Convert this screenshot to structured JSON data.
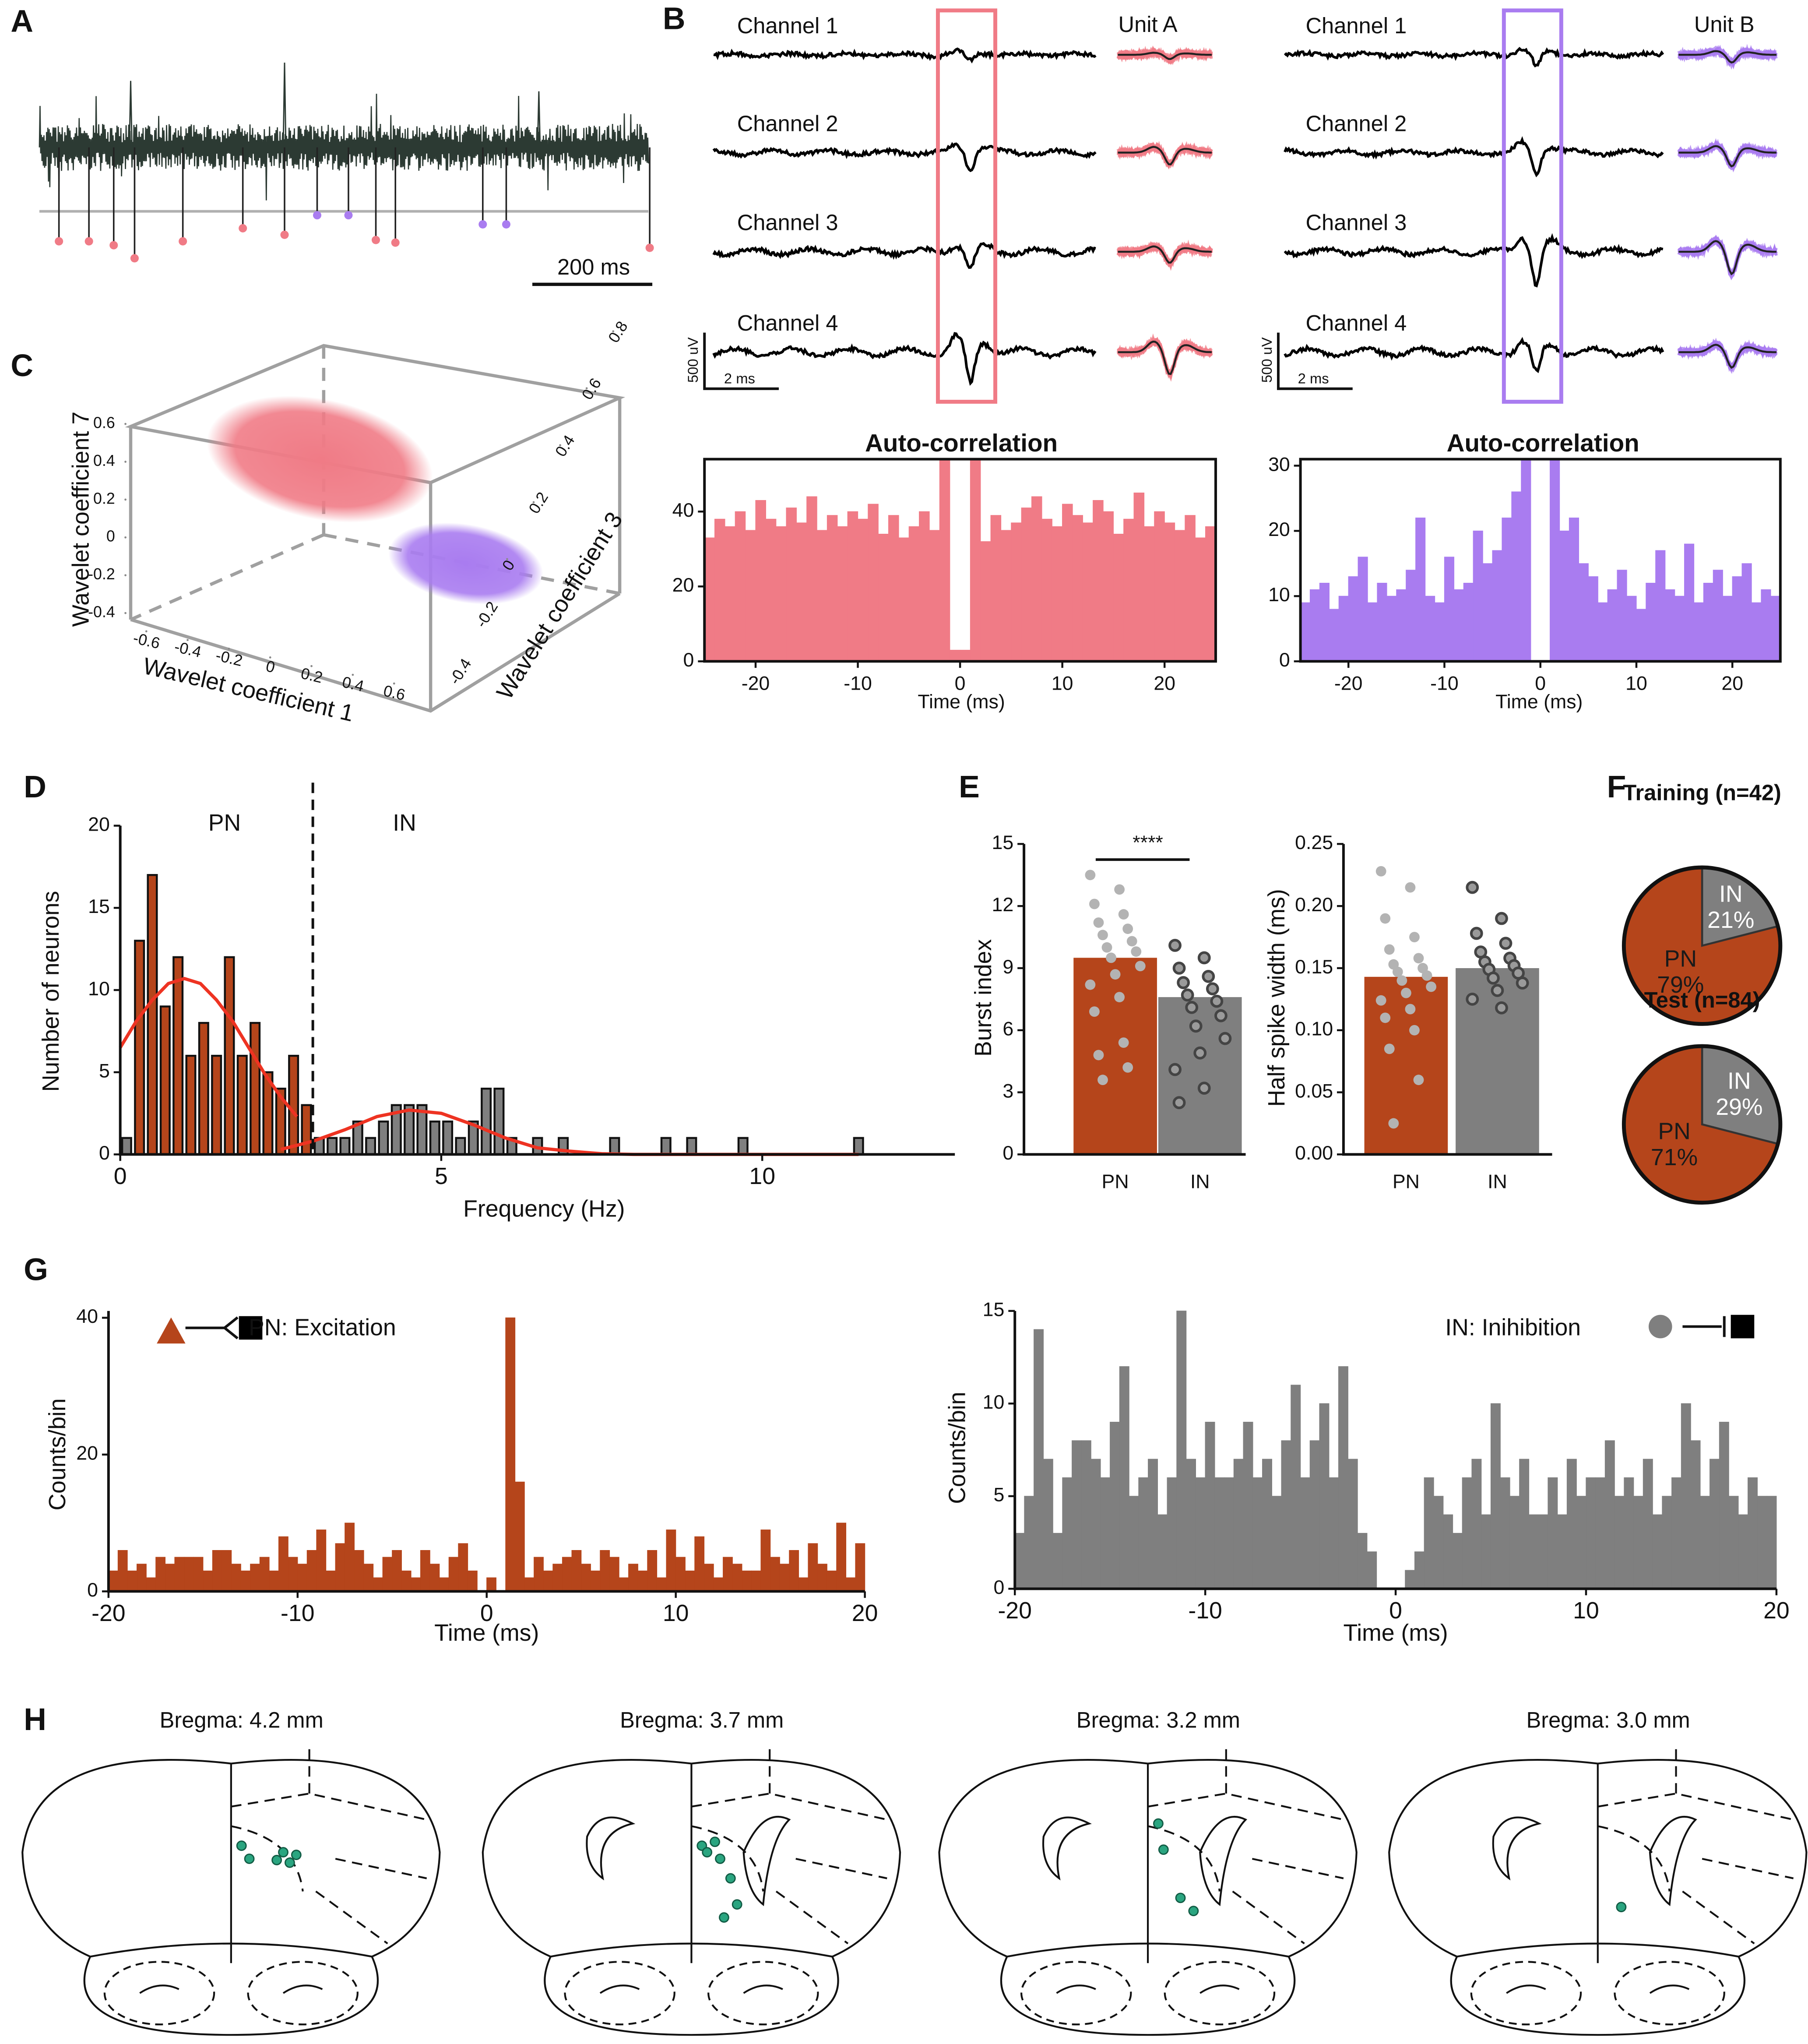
{
  "labels": {
    "panels": [
      "A",
      "B",
      "C",
      "D",
      "E",
      "F",
      "G",
      "H"
    ],
    "a_scale": "200 ms",
    "b_channels": [
      "Channel 1",
      "Channel 2",
      "Channel 3",
      "Channel 4"
    ],
    "b_units": [
      "Unit A",
      "Unit B"
    ],
    "b_scale_v": "500 uV",
    "b_scale_t": "2 ms",
    "h_sections": [
      "Bregma: 4.2 mm",
      "Bregma: 3.7 mm",
      "Bregma: 3.2 mm",
      "Bregma: 3.0 mm"
    ]
  },
  "chart_data": [
    {
      "type": "scatter3d",
      "xlabel": "Wavelet coefficient 1",
      "ylabel": "Wavelet coefficient 3",
      "zlabel": "Wavelet coefficient 7",
      "xlim": [
        -0.6,
        0.6
      ],
      "xticks": [
        -0.6,
        -0.4,
        -0.2,
        0,
        0.2,
        0.4,
        0.6
      ],
      "ylim": [
        -0.4,
        0.8
      ],
      "yticks": [
        -0.4,
        -0.2,
        0,
        0.2,
        0.4,
        0.6,
        0.8
      ],
      "zlim": [
        -0.4,
        0.6
      ],
      "zticks": [
        -0.4,
        -0.2,
        0,
        0.2,
        0.4,
        0.6
      ],
      "colors": [
        "#f07b86",
        "#a97cf0"
      ]
    },
    {
      "type": "histogram",
      "title": "Auto-correlation",
      "xlabel": "Time (ms)",
      "color": "#f07b86",
      "frame": true,
      "bins": [
        -25,
        -24,
        -23,
        -22,
        -21,
        -20,
        -19,
        -18,
        -17,
        -16,
        -15,
        -14,
        -13,
        -12,
        -11,
        -10,
        -9,
        -8,
        -7,
        -6,
        -5,
        -4,
        -3,
        -2,
        -1,
        0,
        1,
        2,
        3,
        4,
        5,
        6,
        7,
        8,
        9,
        10,
        11,
        12,
        13,
        14,
        15,
        16,
        17,
        18,
        19,
        20,
        21,
        22,
        23,
        24,
        25
      ],
      "values": [
        33,
        38,
        36,
        40,
        35,
        43,
        38,
        36,
        41,
        37,
        44,
        35,
        39,
        36,
        40,
        38,
        42,
        34,
        39,
        33,
        36,
        40,
        35,
        54,
        3,
        3,
        54,
        32,
        39,
        35,
        37,
        41,
        44,
        38,
        36,
        42,
        39,
        37,
        43,
        40,
        34,
        38,
        45,
        36,
        40,
        37,
        35,
        39,
        33,
        36
      ],
      "xlim": [
        -25,
        25
      ],
      "xticks": [
        -20,
        -10,
        0,
        10,
        20
      ],
      "ylim": [
        0,
        54
      ],
      "yticks": [
        0,
        20,
        40
      ]
    },
    {
      "type": "histogram",
      "title": "Auto-correlation",
      "xlabel": "Time (ms)",
      "color": "#a97cf0",
      "frame": true,
      "bins": [
        -25,
        -24,
        -23,
        -22,
        -21,
        -20,
        -19,
        -18,
        -17,
        -16,
        -15,
        -14,
        -13,
        -12,
        -11,
        -10,
        -9,
        -8,
        -7,
        -6,
        -5,
        -4,
        -3,
        -2,
        -1,
        0,
        1,
        2,
        3,
        4,
        5,
        6,
        7,
        8,
        9,
        10,
        11,
        12,
        13,
        14,
        15,
        16,
        17,
        18,
        19,
        20,
        21,
        22,
        23,
        24,
        25
      ],
      "values": [
        9,
        11,
        12,
        8,
        10,
        13,
        16,
        9,
        12,
        10,
        11,
        14,
        22,
        10,
        9,
        16,
        11,
        12,
        20,
        15,
        17,
        22,
        26,
        31,
        0,
        0,
        31,
        20,
        22,
        15,
        13,
        9,
        11,
        14,
        10,
        8,
        12,
        17,
        11,
        10,
        18,
        9,
        12,
        14,
        10,
        13,
        15,
        9,
        11,
        10
      ],
      "xlim": [
        -25,
        25
      ],
      "xticks": [
        -20,
        -10,
        0,
        10,
        20
      ],
      "ylim": [
        0,
        31
      ],
      "yticks": [
        0,
        10,
        20,
        30
      ]
    },
    {
      "type": "histogram",
      "xlabel": "Frequency (Hz)",
      "ylabel": "Number of neurons",
      "bins": [
        0,
        0.2,
        0.4,
        0.6,
        0.8,
        1,
        1.2,
        1.4,
        1.6,
        1.8,
        2,
        2.2,
        2.4,
        2.6,
        2.8,
        3,
        3.2,
        3.4,
        3.6,
        3.8,
        4,
        4.2,
        4.4,
        4.6,
        4.8,
        5,
        5.2,
        5.4,
        5.6,
        5.8,
        6,
        6.2,
        6.4,
        6.6,
        6.8,
        7,
        7.2,
        7.4,
        7.6,
        7.8,
        8,
        8.2,
        8.4,
        8.6,
        8.8,
        9,
        9.2,
        9.4,
        9.6,
        9.8,
        10,
        10.2,
        10.4,
        10.6,
        10.8,
        11,
        11.2,
        11.4,
        11.6,
        11.8,
        12
      ],
      "series": [
        {
          "name": "PN",
          "color": "#b5451b",
          "values": [
            0,
            13,
            17,
            9,
            12,
            6,
            8,
            6,
            12,
            6,
            8,
            5,
            4,
            6,
            3,
            0,
            0,
            0,
            0,
            0,
            0,
            0,
            0,
            0,
            0,
            0,
            0,
            0,
            0,
            0,
            0,
            0,
            0,
            0,
            0,
            0,
            0,
            0,
            0,
            0,
            0,
            0,
            0,
            0,
            0,
            0,
            0,
            0,
            0,
            0,
            0,
            0,
            0,
            0,
            0,
            0,
            0,
            0,
            0,
            0
          ]
        },
        {
          "name": "IN",
          "color": "#7f7f7f",
          "values": [
            1,
            0,
            0,
            0,
            0,
            0,
            0,
            0,
            0,
            0,
            0,
            0,
            0,
            0,
            0,
            1,
            1,
            1,
            2,
            1,
            2,
            3,
            3,
            3,
            2,
            2,
            1,
            2,
            4,
            4,
            1,
            0,
            1,
            0,
            1,
            0,
            0,
            0,
            1,
            0,
            0,
            0,
            1,
            0,
            1,
            0,
            0,
            0,
            1,
            0,
            0,
            0,
            0,
            0,
            0,
            0,
            0,
            1,
            0,
            0
          ]
        }
      ],
      "fits": [
        {
          "color": "#ee3322",
          "x": [
            0,
            0.25,
            0.5,
            0.75,
            1,
            1.25,
            1.5,
            1.75,
            2,
            2.25,
            2.5,
            2.75
          ],
          "values": [
            6.5,
            8.1,
            9.4,
            10.4,
            10.7,
            10.4,
            9.4,
            8.1,
            6.5,
            4.9,
            3.5,
            2.3
          ]
        },
        {
          "color": "#ee3322",
          "x": [
            2.5,
            3,
            3.5,
            4,
            4.5,
            5,
            5.5,
            6,
            6.5,
            7,
            7.5,
            8,
            9,
            10,
            11.5
          ],
          "values": [
            0.3,
            0.8,
            1.5,
            2.3,
            2.7,
            2.5,
            1.8,
            1.0,
            0.4,
            0.2,
            0.04,
            0,
            0,
            0,
            0
          ]
        }
      ],
      "threshold": 3,
      "xlim": [
        0,
        13
      ],
      "xticks": [
        0,
        5,
        10
      ],
      "ylim": [
        0,
        20
      ],
      "yticks": [
        0,
        5,
        10,
        15,
        20
      ]
    },
    {
      "type": "bar",
      "ylabel": "Burst index",
      "categories": [
        "PN",
        "IN"
      ],
      "values": [
        9.5,
        7.6
      ],
      "colors": [
        "#b5451b",
        "#7f7f7f"
      ],
      "point_colors": [
        "#b3b3b3",
        "#444444"
      ],
      "points": [
        [
          13.5,
          12.8,
          12.1,
          11.6,
          11.2,
          10.9,
          10.6,
          10.3,
          10.0,
          9.8,
          9.5,
          9.1,
          8.7,
          8.2,
          7.6,
          6.9,
          5.4,
          4.8,
          4.2,
          3.6
        ],
        [
          10.1,
          9.5,
          9.0,
          8.6,
          8.3,
          8.0,
          7.7,
          7.4,
          7.1,
          6.7,
          6.2,
          5.6,
          4.9,
          4.1,
          3.2,
          2.5
        ]
      ],
      "annotation": "****",
      "ylim": [
        0,
        15
      ],
      "yticks": [
        0,
        3,
        6,
        9,
        12,
        15
      ]
    },
    {
      "type": "bar",
      "ylabel": "Half spike width (ms)",
      "categories": [
        "PN",
        "IN"
      ],
      "values": [
        0.143,
        0.15
      ],
      "colors": [
        "#b5451b",
        "#7f7f7f"
      ],
      "point_colors": [
        "#b3b3b3",
        "#444444"
      ],
      "points": [
        [
          0.228,
          0.215,
          0.19,
          0.175,
          0.165,
          0.158,
          0.153,
          0.15,
          0.147,
          0.144,
          0.14,
          0.135,
          0.13,
          0.124,
          0.117,
          0.11,
          0.1,
          0.085,
          0.06,
          0.025
        ],
        [
          0.215,
          0.19,
          0.178,
          0.17,
          0.163,
          0.158,
          0.155,
          0.152,
          0.149,
          0.146,
          0.142,
          0.138,
          0.132,
          0.125,
          0.118
        ]
      ],
      "ylim": [
        0,
        0.25
      ],
      "yticks": [
        {
          "value": 0,
          "label": "0.00"
        },
        0.05,
        {
          "value": 0.1,
          "label": "0.10"
        },
        0.15,
        {
          "value": 0.2,
          "label": "0.20"
        },
        0.25
      ]
    },
    {
      "type": "pie",
      "title": "Training (n=42)",
      "categories": [
        "IN",
        "PN"
      ],
      "values": [
        21,
        79
      ],
      "value_labels": [
        "21%",
        "79%"
      ],
      "colors": [
        "#7f7f7f",
        "#b5451b"
      ]
    },
    {
      "type": "pie",
      "title": "Test (n=84)",
      "categories": [
        "IN",
        "PN"
      ],
      "values": [
        29,
        71
      ],
      "value_labels": [
        "29%",
        "71%"
      ],
      "colors": [
        "#7f7f7f",
        "#b5451b"
      ]
    },
    {
      "type": "histogram",
      "annotation": "PN: Excitation",
      "xlabel": "Time (ms)",
      "ylabel": "Counts/bin",
      "color": "#b5451b",
      "bins": [
        -20,
        -19.5,
        -19,
        -18.5,
        -18,
        -17.5,
        -17,
        -16.5,
        -16,
        -15.5,
        -15,
        -14.5,
        -14,
        -13.5,
        -13,
        -12.5,
        -12,
        -11.5,
        -11,
        -10.5,
        -10,
        -9.5,
        -9,
        -8.5,
        -8,
        -7.5,
        -7,
        -6.5,
        -6,
        -5.5,
        -5,
        -4.5,
        -4,
        -3.5,
        -3,
        -2.5,
        -2,
        -1.5,
        -1,
        -0.5,
        0,
        0.5,
        1,
        1.5,
        2,
        2.5,
        3,
        3.5,
        4,
        4.5,
        5,
        5.5,
        6,
        6.5,
        7,
        7.5,
        8,
        8.5,
        9,
        9.5,
        10,
        10.5,
        11,
        11.5,
        12,
        12.5,
        13,
        13.5,
        14,
        14.5,
        15,
        15.5,
        16,
        16.5,
        17,
        17.5,
        18,
        18.5,
        19,
        19.5,
        20
      ],
      "values": [
        3,
        6,
        3,
        4,
        2,
        5,
        4,
        5,
        5,
        5,
        3,
        6,
        6,
        4,
        3,
        4,
        5,
        3,
        8,
        5,
        4,
        6,
        9,
        3,
        7,
        10,
        6,
        4,
        2,
        5,
        6,
        3,
        2,
        6,
        4,
        2,
        5,
        7,
        3,
        0,
        2,
        0,
        40,
        16,
        2,
        5,
        3,
        4,
        5,
        6,
        4,
        3,
        6,
        5,
        2,
        4,
        3,
        6,
        2,
        9,
        5,
        3,
        8,
        4,
        2,
        5,
        4,
        3,
        3,
        9,
        5,
        4,
        6,
        2,
        7,
        4,
        3,
        10,
        2,
        7
      ],
      "xlim": [
        -20,
        20
      ],
      "xticks": [
        -20,
        -10,
        0,
        10,
        20
      ],
      "ylim": [
        0,
        41
      ],
      "yticks": [
        0,
        20,
        40
      ]
    },
    {
      "type": "histogram",
      "annotation": "IN: Inihibition",
      "xlabel": "Time (ms)",
      "ylabel": "Counts/bin",
      "color": "#7f7f7f",
      "bins": [
        -20,
        -19.5,
        -19,
        -18.5,
        -18,
        -17.5,
        -17,
        -16.5,
        -16,
        -15.5,
        -15,
        -14.5,
        -14,
        -13.5,
        -13,
        -12.5,
        -12,
        -11.5,
        -11,
        -10.5,
        -10,
        -9.5,
        -9,
        -8.5,
        -8,
        -7.5,
        -7,
        -6.5,
        -6,
        -5.5,
        -5,
        -4.5,
        -4,
        -3.5,
        -3,
        -2.5,
        -2,
        -1.5,
        -1,
        -0.5,
        0,
        0.5,
        1,
        1.5,
        2,
        2.5,
        3,
        3.5,
        4,
        4.5,
        5,
        5.5,
        6,
        6.5,
        7,
        7.5,
        8,
        8.5,
        9,
        9.5,
        10,
        10.5,
        11,
        11.5,
        12,
        12.5,
        13,
        13.5,
        14,
        14.5,
        15,
        15.5,
        16,
        16.5,
        17,
        17.5,
        18,
        18.5,
        19,
        19.5,
        20
      ],
      "values": [
        3,
        5,
        14,
        7,
        3,
        6,
        8,
        8,
        7,
        6,
        9,
        12,
        5,
        6,
        7,
        4,
        6,
        15,
        7,
        6,
        9,
        6,
        6,
        7,
        9,
        6,
        7,
        5,
        8,
        11,
        6,
        8,
        10,
        6,
        12,
        7,
        3,
        2,
        0,
        0,
        0,
        1,
        2,
        6,
        5,
        4,
        3,
        6,
        7,
        4,
        10,
        6,
        5,
        7,
        4,
        4,
        6,
        4,
        7,
        5,
        6,
        6,
        8,
        5,
        6,
        5,
        7,
        4,
        5,
        6,
        10,
        8,
        5,
        7,
        9,
        5,
        4,
        6,
        5,
        5
      ],
      "xlim": [
        -20,
        20
      ],
      "xticks": [
        -20,
        -10,
        0,
        10,
        20
      ],
      "ylim": [
        0,
        15
      ],
      "yticks": [
        0,
        5,
        10,
        15
      ]
    }
  ]
}
